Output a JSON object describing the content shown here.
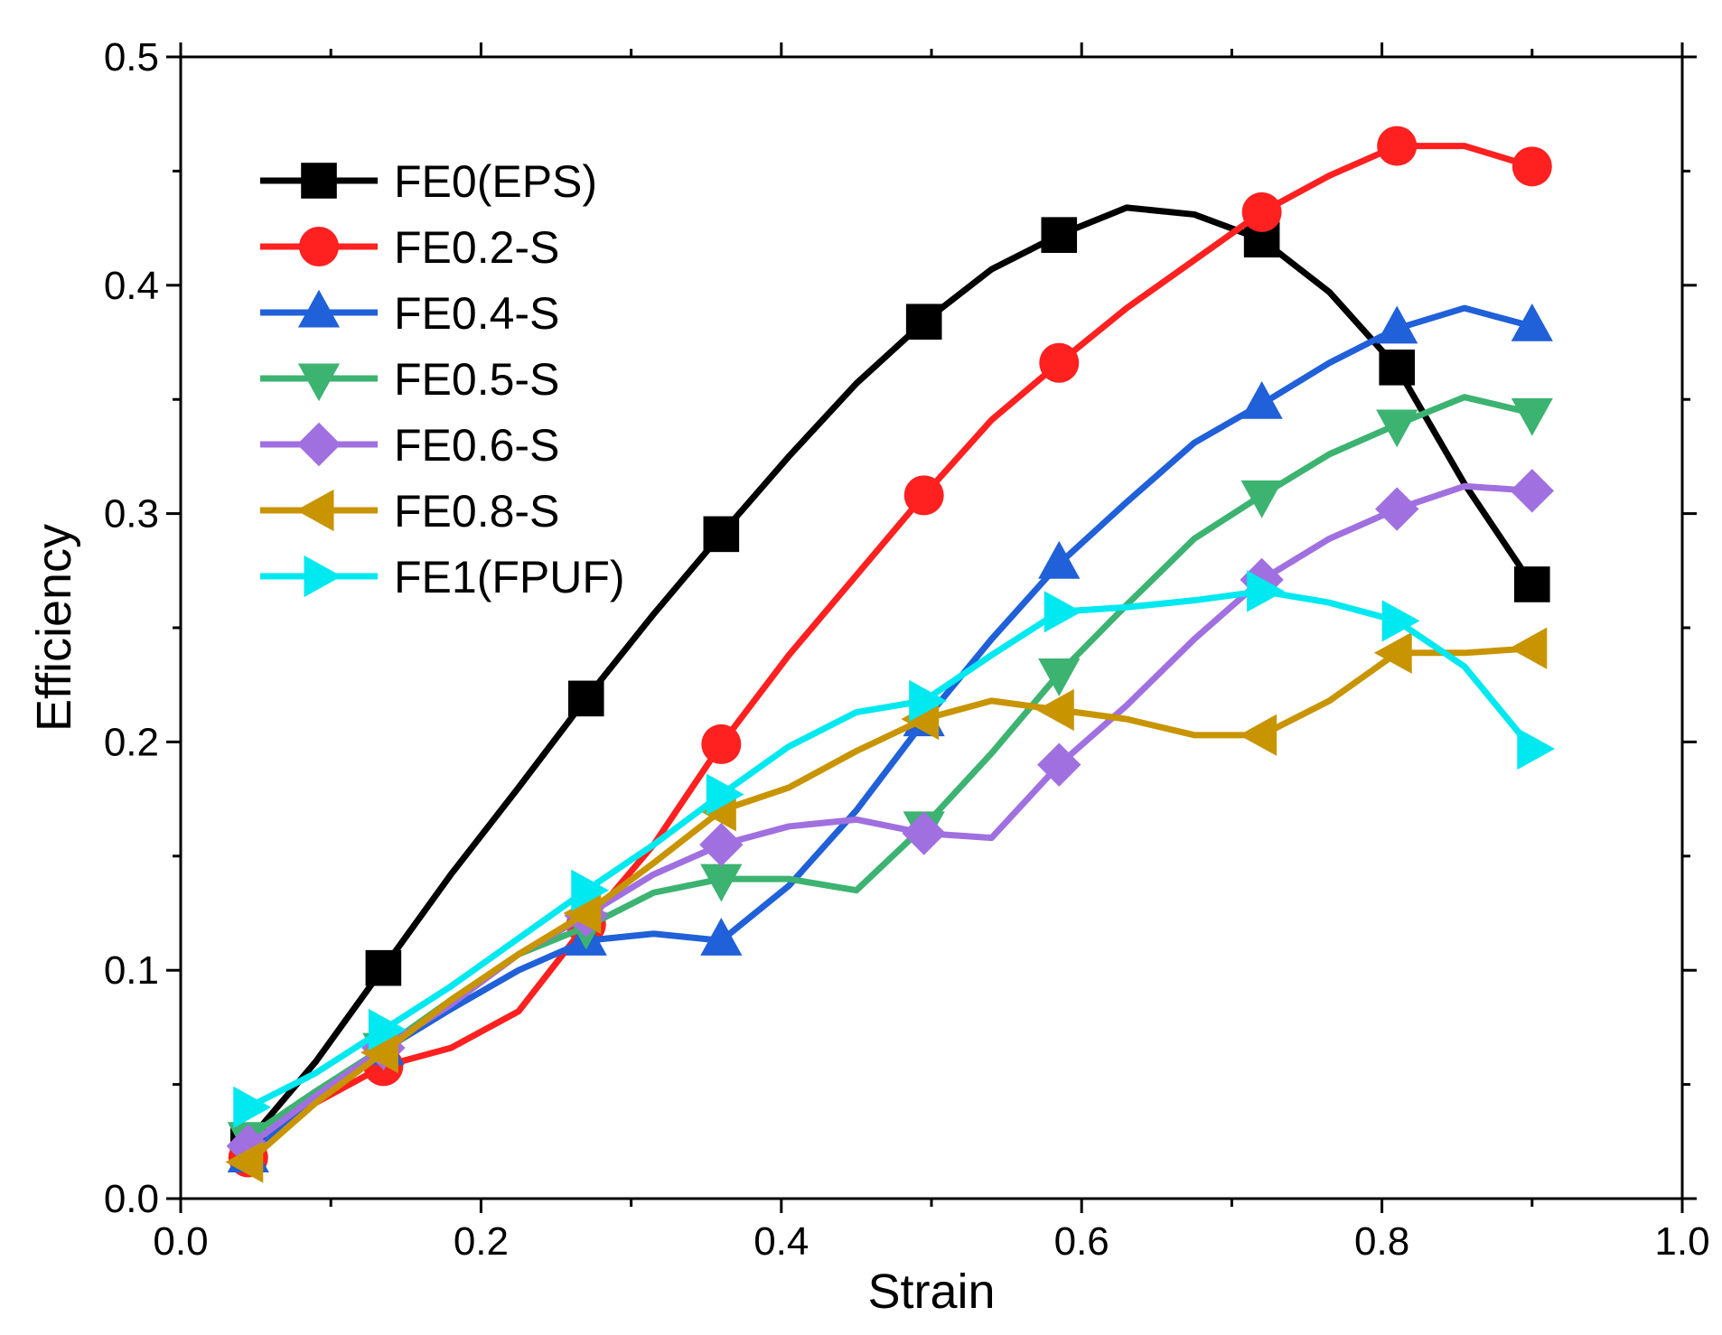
{
  "chart_data": {
    "type": "line",
    "title": "",
    "xlabel": "Strain",
    "ylabel": "Efficiency",
    "xlim": [
      0.0,
      1.0
    ],
    "ylim": [
      0.0,
      0.5
    ],
    "xticks": [
      "0.0",
      "0.2",
      "0.4",
      "0.6",
      "0.8",
      "1.0"
    ],
    "yticks": [
      "0.0",
      "0.1",
      "0.2",
      "0.3",
      "0.4",
      "0.5"
    ],
    "grid": false,
    "legend_position": "top-left",
    "series": [
      {
        "name": "FE0(EPS)",
        "color": "#000000",
        "marker": "square",
        "x": [
          0.045,
          0.09,
          0.135,
          0.18,
          0.225,
          0.27,
          0.315,
          0.36,
          0.405,
          0.45,
          0.495,
          0.54,
          0.585,
          0.63,
          0.675,
          0.72,
          0.765,
          0.81,
          0.855,
          0.9
        ],
        "y": [
          0.025,
          0.06,
          0.101,
          0.142,
          0.18,
          0.219,
          0.256,
          0.291,
          0.325,
          0.357,
          0.384,
          0.407,
          0.422,
          0.434,
          0.431,
          0.42,
          0.397,
          0.364,
          0.313,
          0.269
        ],
        "marker_indices": [
          0,
          2,
          5,
          7,
          10,
          12,
          15,
          17,
          19
        ]
      },
      {
        "name": "FE0.2-S",
        "color": "#ff2020",
        "marker": "circle",
        "x": [
          0.045,
          0.09,
          0.135,
          0.18,
          0.225,
          0.27,
          0.315,
          0.36,
          0.405,
          0.45,
          0.495,
          0.54,
          0.585,
          0.63,
          0.675,
          0.72,
          0.765,
          0.81,
          0.855,
          0.9
        ],
        "y": [
          0.018,
          0.042,
          0.058,
          0.066,
          0.082,
          0.12,
          0.155,
          0.199,
          0.238,
          0.273,
          0.308,
          0.341,
          0.366,
          0.39,
          0.411,
          0.432,
          0.448,
          0.461,
          0.461,
          0.452
        ],
        "marker_indices": [
          0,
          2,
          5,
          7,
          10,
          12,
          15,
          17,
          19
        ]
      },
      {
        "name": "FE0.4-S",
        "color": "#2060d8",
        "marker": "triangle-up",
        "x": [
          0.045,
          0.09,
          0.135,
          0.18,
          0.225,
          0.27,
          0.315,
          0.36,
          0.405,
          0.45,
          0.495,
          0.54,
          0.585,
          0.63,
          0.675,
          0.72,
          0.765,
          0.81,
          0.855,
          0.9
        ],
        "y": [
          0.018,
          0.045,
          0.065,
          0.083,
          0.1,
          0.113,
          0.116,
          0.113,
          0.137,
          0.17,
          0.209,
          0.245,
          0.278,
          0.305,
          0.331,
          0.348,
          0.366,
          0.381,
          0.39,
          0.382
        ],
        "marker_indices": [
          0,
          2,
          5,
          7,
          10,
          12,
          15,
          17,
          19
        ]
      },
      {
        "name": "FE0.5-S",
        "color": "#3cb371",
        "marker": "triangle-down",
        "x": [
          0.045,
          0.09,
          0.135,
          0.18,
          0.225,
          0.27,
          0.315,
          0.36,
          0.405,
          0.45,
          0.495,
          0.54,
          0.585,
          0.63,
          0.675,
          0.72,
          0.765,
          0.81,
          0.855,
          0.9
        ],
        "y": [
          0.027,
          0.047,
          0.066,
          0.087,
          0.107,
          0.119,
          0.134,
          0.14,
          0.14,
          0.135,
          0.163,
          0.195,
          0.23,
          0.26,
          0.289,
          0.308,
          0.326,
          0.339,
          0.351,
          0.344
        ],
        "marker_indices": [
          0,
          2,
          5,
          7,
          10,
          12,
          15,
          17,
          19
        ]
      },
      {
        "name": "FE0.6-S",
        "color": "#a070e0",
        "marker": "diamond",
        "x": [
          0.045,
          0.09,
          0.135,
          0.18,
          0.225,
          0.27,
          0.315,
          0.36,
          0.405,
          0.45,
          0.495,
          0.54,
          0.585,
          0.63,
          0.675,
          0.72,
          0.765,
          0.81,
          0.855,
          0.9
        ],
        "y": [
          0.023,
          0.045,
          0.066,
          0.085,
          0.107,
          0.124,
          0.142,
          0.155,
          0.163,
          0.166,
          0.16,
          0.158,
          0.19,
          0.216,
          0.245,
          0.271,
          0.289,
          0.302,
          0.312,
          0.31
        ],
        "marker_indices": [
          0,
          2,
          5,
          7,
          10,
          12,
          15,
          17,
          19
        ]
      },
      {
        "name": "FE0.8-S",
        "color": "#c89400",
        "marker": "triangle-left",
        "x": [
          0.045,
          0.09,
          0.135,
          0.18,
          0.225,
          0.27,
          0.315,
          0.36,
          0.405,
          0.45,
          0.495,
          0.54,
          0.585,
          0.63,
          0.675,
          0.72,
          0.765,
          0.81,
          0.855,
          0.9
        ],
        "y": [
          0.016,
          0.042,
          0.064,
          0.087,
          0.107,
          0.125,
          0.147,
          0.17,
          0.18,
          0.196,
          0.21,
          0.218,
          0.214,
          0.21,
          0.203,
          0.203,
          0.218,
          0.239,
          0.239,
          0.241
        ],
        "marker_indices": [
          0,
          2,
          5,
          7,
          10,
          12,
          15,
          17,
          19
        ]
      },
      {
        "name": "FE1(FPUF)",
        "color": "#00e8f0",
        "marker": "triangle-right",
        "x": [
          0.045,
          0.09,
          0.135,
          0.18,
          0.225,
          0.27,
          0.315,
          0.36,
          0.405,
          0.45,
          0.495,
          0.54,
          0.585,
          0.63,
          0.675,
          0.72,
          0.765,
          0.81,
          0.855,
          0.9
        ],
        "y": [
          0.04,
          0.055,
          0.074,
          0.093,
          0.114,
          0.135,
          0.155,
          0.177,
          0.198,
          0.213,
          0.218,
          0.238,
          0.257,
          0.259,
          0.262,
          0.266,
          0.261,
          0.253,
          0.233,
          0.197
        ],
        "marker_indices": [
          0,
          2,
          5,
          7,
          10,
          12,
          15,
          17,
          19
        ]
      }
    ]
  }
}
